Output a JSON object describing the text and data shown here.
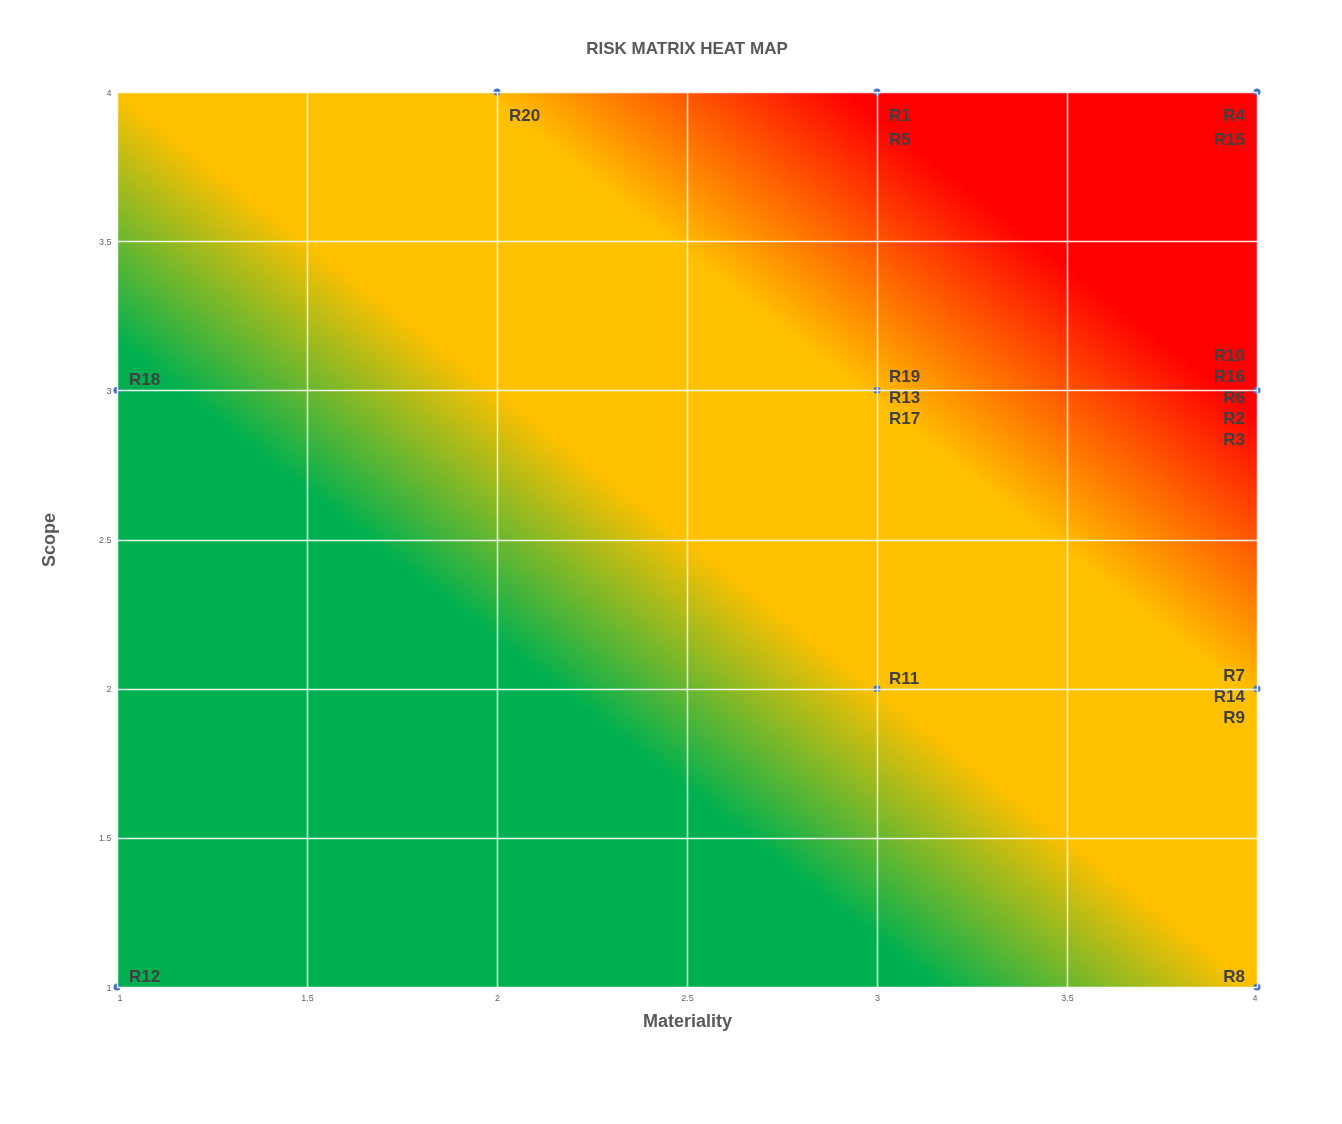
{
  "chart_data": {
    "type": "scatter",
    "title": "RISK MATRIX HEAT MAP",
    "xlabel": "Materiality",
    "ylabel": "Scope",
    "x": [
      1,
      2,
      3,
      4,
      1,
      3,
      4,
      3,
      4,
      4
    ],
    "series": [
      {
        "color": "#4472c4",
        "values": [
          1,
          4,
          4,
          4,
          3,
          3,
          3,
          2,
          2,
          1
        ]
      }
    ],
    "xlim": [
      1,
      4
    ],
    "ylim": [
      1,
      4
    ],
    "xticks": [
      1,
      1.5,
      2,
      2.5,
      3,
      3.5,
      4
    ],
    "yticks": [
      1,
      1.5,
      2,
      2.5,
      3,
      3.5,
      4
    ],
    "grid": true,
    "marker": "circle",
    "annotations": [
      {
        "text": "R12",
        "x": 1,
        "y": 1
      },
      {
        "text": "R20",
        "x": 2,
        "y": 4
      },
      {
        "text": "R1",
        "x": 3,
        "y": 4
      },
      {
        "text": "R5",
        "x": 3,
        "y": 4
      },
      {
        "text": "R4",
        "x": 4,
        "y": 4
      },
      {
        "text": "R15",
        "x": 4,
        "y": 4
      },
      {
        "text": "R18",
        "x": 1,
        "y": 3
      },
      {
        "text": "R19",
        "x": 3,
        "y": 3
      },
      {
        "text": "R13",
        "x": 3,
        "y": 3
      },
      {
        "text": "R17",
        "x": 3,
        "y": 3
      },
      {
        "text": "R10",
        "x": 4,
        "y": 3
      },
      {
        "text": "R16",
        "x": 4,
        "y": 3
      },
      {
        "text": "R6",
        "x": 4,
        "y": 3
      },
      {
        "text": "R2",
        "x": 4,
        "y": 3
      },
      {
        "text": "R3",
        "x": 4,
        "y": 3
      },
      {
        "text": "R11",
        "x": 3,
        "y": 2
      },
      {
        "text": "R7",
        "x": 4,
        "y": 2
      },
      {
        "text": "R14",
        "x": 4,
        "y": 2
      },
      {
        "text": "R9",
        "x": 4,
        "y": 2
      },
      {
        "text": "R8",
        "x": 4,
        "y": 1
      }
    ]
  }
}
